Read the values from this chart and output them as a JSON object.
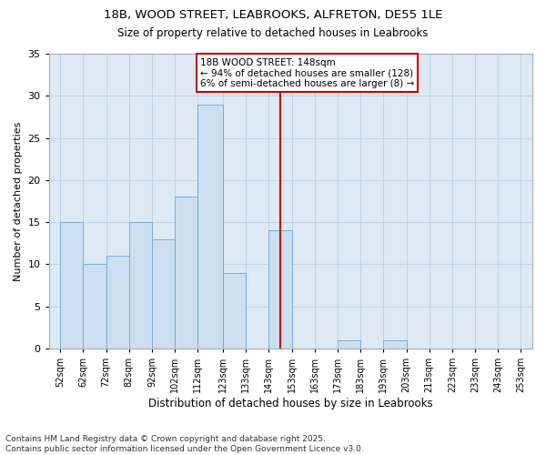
{
  "title_line1": "18B, WOOD STREET, LEABROOKS, ALFRETON, DE55 1LE",
  "title_line2": "Size of property relative to detached houses in Leabrooks",
  "xlabel": "Distribution of detached houses by size in Leabrooks",
  "ylabel": "Number of detached properties",
  "bar_left_edges": [
    52,
    62,
    72,
    82,
    92,
    102,
    112,
    123,
    133,
    143,
    153,
    163,
    173,
    183,
    193,
    203,
    213,
    223,
    233,
    243
  ],
  "bin_widths": [
    10,
    10,
    10,
    10,
    10,
    10,
    11,
    10,
    10,
    10,
    10,
    10,
    10,
    10,
    10,
    10,
    10,
    10,
    10,
    10
  ],
  "bar_heights": [
    15,
    10,
    11,
    15,
    13,
    18,
    29,
    9,
    0,
    14,
    0,
    0,
    1,
    0,
    1,
    0,
    0,
    0,
    0,
    0
  ],
  "bar_color": "#ccdff0",
  "bar_edgecolor": "#7aaed6",
  "subject_line_x": 148,
  "subject_line_color": "#cc0000",
  "annotation_text": "18B WOOD STREET: 148sqm\n← 94% of detached houses are smaller (128)\n6% of semi-detached houses are larger (8) →",
  "annotation_box_color": "#cc0000",
  "annotation_fontsize": 7.5,
  "ylim": [
    0,
    35
  ],
  "yticks": [
    0,
    5,
    10,
    15,
    20,
    25,
    30,
    35
  ],
  "tick_labels": [
    "52sqm",
    "62sqm",
    "72sqm",
    "82sqm",
    "92sqm",
    "102sqm",
    "112sqm",
    "123sqm",
    "133sqm",
    "143sqm",
    "153sqm",
    "163sqm",
    "173sqm",
    "183sqm",
    "193sqm",
    "203sqm",
    "213sqm",
    "223sqm",
    "233sqm",
    "243sqm",
    "253sqm"
  ],
  "grid_color": "#c0d4e8",
  "bg_color": "#ddeaf6",
  "footnote": "Contains HM Land Registry data © Crown copyright and database right 2025.\nContains public sector information licensed under the Open Government Licence v3.0.",
  "footnote_fontsize": 6.5,
  "xlim_left": 47,
  "xlim_right": 258
}
